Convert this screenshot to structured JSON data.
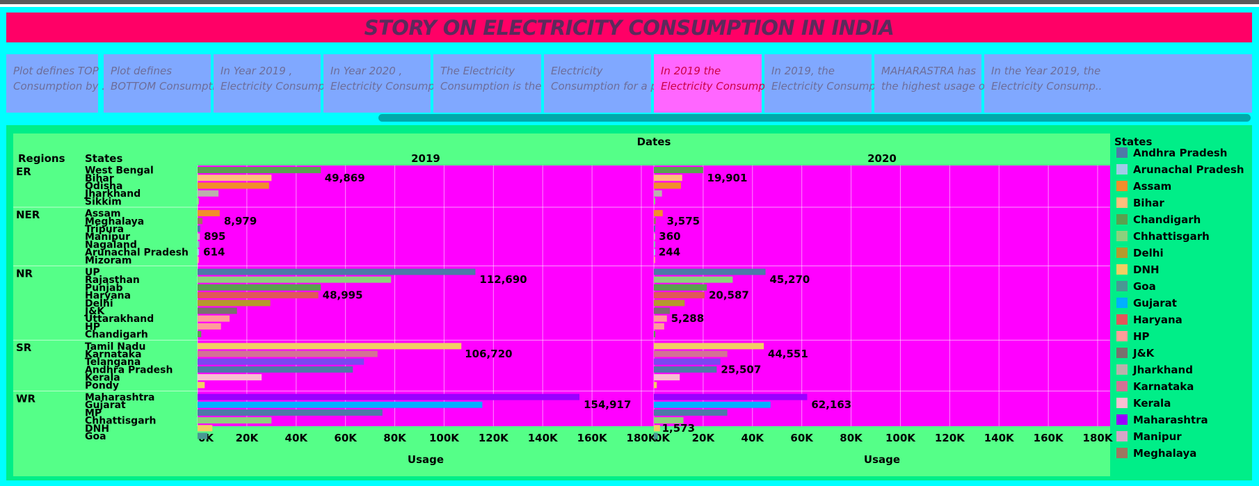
{
  "title": "STORY ON ELECTRICITY CONSUMPTION IN INDIA",
  "story_points": [
    {
      "line1": "Plot defines TOP",
      "line2": "Consumption by ..",
      "active": false
    },
    {
      "line1": "Plot defines",
      "line2": "BOTTOM Consumpti..",
      "active": false
    },
    {
      "line1": "In Year 2019 ,",
      "line2": "Electricity Consump..",
      "active": false
    },
    {
      "line1": "In Year 2020 ,",
      "line2": "Electricity Consump..",
      "active": false
    },
    {
      "line1": "The Electricity",
      "line2": "Consumption is the ..",
      "active": false
    },
    {
      "line1": "Electricity",
      "line2": "Consumption for a p..",
      "active": false
    },
    {
      "line1": "In 2019 the",
      "line2": "Electricity Consump..",
      "active": true
    },
    {
      "line1": "In 2019, the",
      "line2": "Electricity Consump..",
      "active": false
    },
    {
      "line1": "MAHARASTRA has",
      "line2": "the highest usage o..",
      "active": false
    },
    {
      "line1": "In the Year 2019, the",
      "line2": "Electricity Consump..",
      "active": false
    }
  ],
  "colors": {
    "plot_bg": "#ff00ff",
    "panel_bg": "#55ff88",
    "caption_bg": "#80a8ff",
    "caption_active_bg": "#ff66ff",
    "title_bg": "#ff0066"
  },
  "chart_data": {
    "type": "bar",
    "orientation": "horizontal",
    "column_header": "Dates",
    "row_headers": [
      "Regions",
      "States"
    ],
    "panels": [
      "2019",
      "2020"
    ],
    "xlabel": "Usage",
    "xlim": [
      0,
      180000
    ],
    "xticks": [
      "0K",
      "20K",
      "40K",
      "60K",
      "80K",
      "100K",
      "120K",
      "140K",
      "160K",
      "180K"
    ],
    "legend_title": "States",
    "legend_position": "right",
    "legend": [
      {
        "name": "Andhra Pradesh",
        "color": "#4e79a7"
      },
      {
        "name": "Arunachal Pradesh",
        "color": "#a0cbe8"
      },
      {
        "name": "Assam",
        "color": "#f28e2b"
      },
      {
        "name": "Bihar",
        "color": "#ffbe7d"
      },
      {
        "name": "Chandigarh",
        "color": "#59a14f"
      },
      {
        "name": "Chhattisgarh",
        "color": "#8cd17d"
      },
      {
        "name": "Delhi",
        "color": "#b6992d"
      },
      {
        "name": "DNH",
        "color": "#f1ce63"
      },
      {
        "name": "Goa",
        "color": "#499894"
      },
      {
        "name": "Gujarat",
        "color": "#00b0ff"
      },
      {
        "name": "Haryana",
        "color": "#e15759"
      },
      {
        "name": "HP",
        "color": "#ff9d9a"
      },
      {
        "name": "J&K",
        "color": "#79706e"
      },
      {
        "name": "Jharkhand",
        "color": "#bab0ac"
      },
      {
        "name": "Karnataka",
        "color": "#d37295"
      },
      {
        "name": "Kerala",
        "color": "#fabfd2"
      },
      {
        "name": "Maharashtra",
        "color": "#9900ff"
      },
      {
        "name": "Manipur",
        "color": "#d4a6c8"
      },
      {
        "name": "Meghalaya",
        "color": "#9d7660"
      }
    ],
    "regions": [
      {
        "name": "ER",
        "states": [
          {
            "name": "West Bengal",
            "color": "#59a14f",
            "v2019": 50000,
            "v2020": 20000
          },
          {
            "name": "Bihar",
            "color": "#ffbe7d",
            "v2019": 30000,
            "v2020": 11500
          },
          {
            "name": "Odisha",
            "color": "#f28e2b",
            "v2019": 29000,
            "v2020": 11000
          },
          {
            "name": "Jharkhand",
            "color": "#bab0ac",
            "v2019": 8500,
            "v2020": 3300
          },
          {
            "name": "Sikkim",
            "color": "#8cd17d",
            "v2019": 400,
            "v2020": 150
          }
        ]
      },
      {
        "name": "NER",
        "states": [
          {
            "name": "Assam",
            "color": "#f28e2b",
            "v2019": 9000,
            "v2020": 3600
          },
          {
            "name": "Meghalaya",
            "color": "#9d7660",
            "v2019": 2000,
            "v2020": 800
          },
          {
            "name": "Tripura",
            "color": "#4e79a7",
            "v2019": 1100,
            "v2020": 450
          },
          {
            "name": "Manipur",
            "color": "#d4a6c8",
            "v2019": 900,
            "v2020": 360
          },
          {
            "name": "Nagaland",
            "color": "#86bcb6",
            "v2019": 750,
            "v2020": 300
          },
          {
            "name": "Arunachal Pradesh",
            "color": "#a0cbe8",
            "v2019": 600,
            "v2020": 240
          },
          {
            "name": "Mizoram",
            "color": "#ff9d9a",
            "v2019": 550,
            "v2020": 220
          }
        ]
      },
      {
        "name": "NR",
        "states": [
          {
            "name": "UP",
            "color": "#4e79a7",
            "v2019": 112700,
            "v2020": 45300
          },
          {
            "name": "Rajasthan",
            "color": "#8cd17d",
            "v2019": 78500,
            "v2020": 32000
          },
          {
            "name": "Punjab",
            "color": "#59a14f",
            "v2019": 50000,
            "v2020": 21500
          },
          {
            "name": "Haryana",
            "color": "#e15759",
            "v2019": 49000,
            "v2020": 20600
          },
          {
            "name": "Delhi",
            "color": "#b6992d",
            "v2019": 29500,
            "v2020": 12500
          },
          {
            "name": "J&K",
            "color": "#79706e",
            "v2019": 16000,
            "v2020": 6500
          },
          {
            "name": "Uttarakhand",
            "color": "#ff9d9a",
            "v2019": 13000,
            "v2020": 5300
          },
          {
            "name": "HP",
            "color": "#ff9d9a",
            "v2019": 9500,
            "v2020": 4200
          },
          {
            "name": "Chandigarh",
            "color": "#59a14f",
            "v2019": 1500,
            "v2020": 600
          }
        ]
      },
      {
        "name": "SR",
        "states": [
          {
            "name": "Tamil Nadu",
            "color": "#f1ce63",
            "v2019": 107000,
            "v2020": 44600
          },
          {
            "name": "Karnataka",
            "color": "#d37295",
            "v2019": 73000,
            "v2020": 29800
          },
          {
            "name": "Telangana",
            "color": "#7b48f0",
            "v2019": 67500,
            "v2020": 27000
          },
          {
            "name": "Andhra Pradesh",
            "color": "#4e79a7",
            "v2019": 63000,
            "v2020": 25500
          },
          {
            "name": "Kerala",
            "color": "#fabfd2",
            "v2019": 26000,
            "v2020": 10500
          },
          {
            "name": "Pondy",
            "color": "#f1ce63",
            "v2019": 2900,
            "v2020": 1200
          }
        ]
      },
      {
        "name": "WR",
        "states": [
          {
            "name": "Maharashtra",
            "color": "#9900ff",
            "v2019": 154900,
            "v2020": 62200
          },
          {
            "name": "Gujarat",
            "color": "#00b0ff",
            "v2019": 115500,
            "v2020": 47300
          },
          {
            "name": "MP",
            "color": "#4e79a7",
            "v2019": 75000,
            "v2020": 29800
          },
          {
            "name": "Chhattisgarh",
            "color": "#8cd17d",
            "v2019": 30000,
            "v2020": 12000
          },
          {
            "name": "DNH",
            "color": "#f1ce63",
            "v2019": 6000,
            "v2020": 2500
          },
          {
            "name": "Goa",
            "color": "#499894",
            "v2019": 4000,
            "v2020": 1600
          }
        ]
      }
    ],
    "region_labels": [
      {
        "region": "ER",
        "y2019": "49,869",
        "y2020": "19,901",
        "label_state": "Bihar"
      },
      {
        "region": "NER",
        "y2019": "8,979",
        "y2020": "3,575",
        "label_state": "Meghalaya"
      },
      {
        "region": "NER",
        "y2019": "895",
        "y2020": "360",
        "label_state": "Manipur"
      },
      {
        "region": "NER",
        "y2019": "614",
        "y2020": "244",
        "label_state": "Arunachal Pradesh"
      },
      {
        "region": "NR",
        "y2019": "112,690",
        "y2020": "45,270",
        "label_state": "Rajasthan"
      },
      {
        "region": "NR",
        "y2019": "48,995",
        "y2020": "20,587",
        "label_state": "Haryana"
      },
      {
        "region": "NR",
        "y2019": null,
        "y2020": "5,288",
        "label_state": "Uttarakhand"
      },
      {
        "region": "SR",
        "y2019": "106,720",
        "y2020": "44,551",
        "label_state": "Karnataka"
      },
      {
        "region": "SR",
        "y2019": null,
        "y2020": "25,507",
        "label_state": "Andhra Pradesh"
      },
      {
        "region": "WR",
        "y2019": "154,917",
        "y2020": "62,163",
        "label_state": "Gujarat"
      },
      {
        "region": "WR",
        "y2019": null,
        "y2020": "1,573",
        "label_state": "DNH"
      }
    ]
  }
}
